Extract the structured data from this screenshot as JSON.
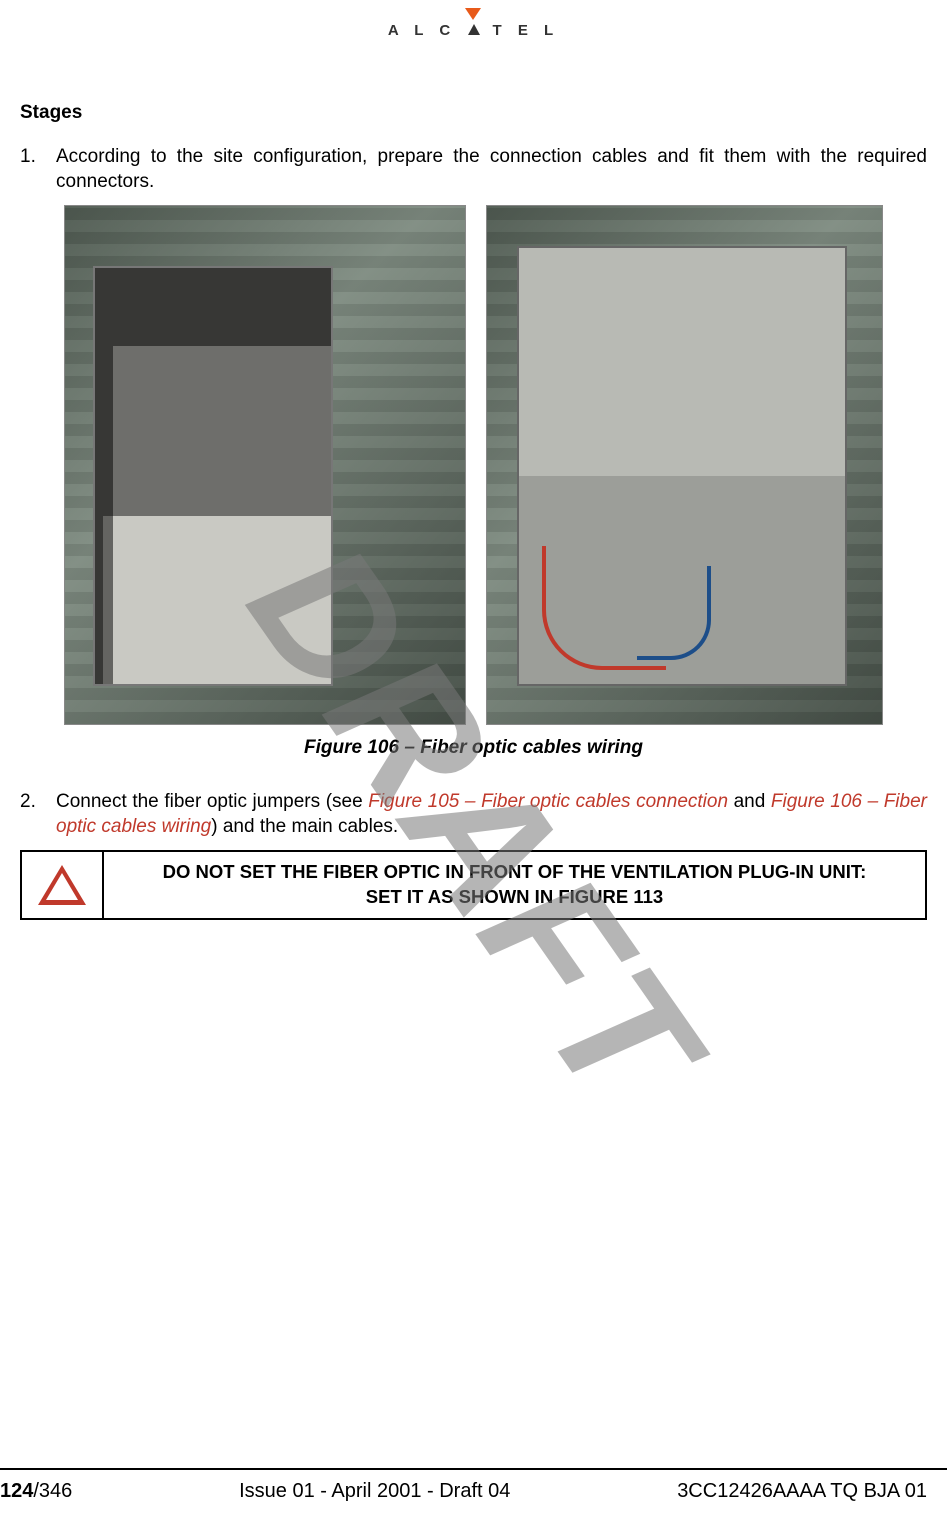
{
  "header": {
    "brand": "ALCATEL",
    "brand_letters_before": "A L C",
    "brand_letters_after": "T E L"
  },
  "content": {
    "heading": "Stages",
    "item1": {
      "num": "1.",
      "text": "According to the site configuration, prepare the connection cables and fit them with the required connectors."
    },
    "figure_caption": "Figure 106 – Fiber optic cables wiring",
    "item2": {
      "num": "2.",
      "text_before": "Connect the fiber optic jumpers (see ",
      "link1": "Figure 105 – Fiber optic cables connection",
      "text_mid": " and ",
      "link2": "Figure 106 – Fiber optic cables wiring",
      "text_after": ") and the main cables."
    },
    "warning": {
      "line1": "DO NOT SET THE FIBER OPTIC IN FRONT OF THE VENTILATION PLUG-IN UNIT:",
      "line2": "SET IT AS SHOWN IN FIGURE 113"
    }
  },
  "watermark": "DRAFT",
  "footer": {
    "page_current": "124",
    "page_total": "/346",
    "center": "Issue 01 - April 2001 - Draft 04",
    "right": "3CC12426AAAA TQ BJA 01"
  },
  "colors": {
    "link_color": "#c0392b",
    "warning_icon": "#c0392b",
    "logo_orange": "#e85a1a",
    "watermark_gray": "rgba(120,120,120,0.55)"
  }
}
